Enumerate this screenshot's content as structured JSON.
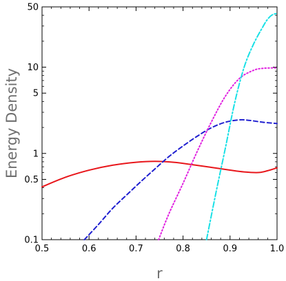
{
  "chart_data": {
    "type": "line",
    "title": "",
    "xlabel": "r",
    "ylabel": "Energy Density",
    "xlim": [
      0.5,
      1.0
    ],
    "ylim": [
      0.1,
      50
    ],
    "yscale": "log",
    "grid": false,
    "legend": "none",
    "x_ticks": [
      0.5,
      0.6,
      0.7,
      0.8,
      0.9,
      1.0
    ],
    "x_tick_labels": [
      "0.5",
      "0.6",
      "0.7",
      "0.8",
      "0.9",
      "1.0"
    ],
    "y_ticks": [
      0.1,
      0.5,
      1,
      5,
      10,
      50
    ],
    "y_tick_labels": [
      "0.1",
      "0.5",
      "1",
      "5",
      "10",
      "50"
    ],
    "series": [
      {
        "color": "#e8161b",
        "dash": "solid",
        "x": [
          0.5,
          0.55,
          0.6,
          0.65,
          0.7,
          0.74,
          0.78,
          0.82,
          0.86,
          0.9,
          0.93,
          0.96,
          0.98,
          1.0
        ],
        "y": [
          0.41,
          0.53,
          0.64,
          0.73,
          0.79,
          0.81,
          0.79,
          0.74,
          0.69,
          0.64,
          0.61,
          0.6,
          0.63,
          0.68
        ]
      },
      {
        "color": "#1f1fd0",
        "dash": "dashed",
        "x": [
          0.59,
          0.62,
          0.65,
          0.68,
          0.71,
          0.74,
          0.77,
          0.8,
          0.83,
          0.86,
          0.89,
          0.92,
          0.94,
          0.97,
          1.0
        ],
        "y": [
          0.1,
          0.15,
          0.23,
          0.33,
          0.47,
          0.66,
          0.92,
          1.22,
          1.58,
          1.98,
          2.3,
          2.45,
          2.42,
          2.3,
          2.22
        ]
      },
      {
        "color": "#e020e0",
        "dash": "dotted",
        "x": [
          0.748,
          0.77,
          0.8,
          0.83,
          0.86,
          0.89,
          0.92,
          0.95,
          0.97,
          0.99,
          1.0
        ],
        "y": [
          0.1,
          0.2,
          0.45,
          1.05,
          2.3,
          4.6,
          7.4,
          9.2,
          9.7,
          9.8,
          9.8
        ]
      },
      {
        "color": "#18e0e6",
        "dash": "dashdot",
        "x": [
          0.85,
          0.87,
          0.89,
          0.91,
          0.93,
          0.95,
          0.97,
          0.98,
          0.99,
          1.0
        ],
        "y": [
          0.1,
          0.35,
          1.15,
          3.9,
          10.0,
          18.5,
          29.5,
          36.0,
          40.5,
          42.0
        ]
      }
    ]
  }
}
